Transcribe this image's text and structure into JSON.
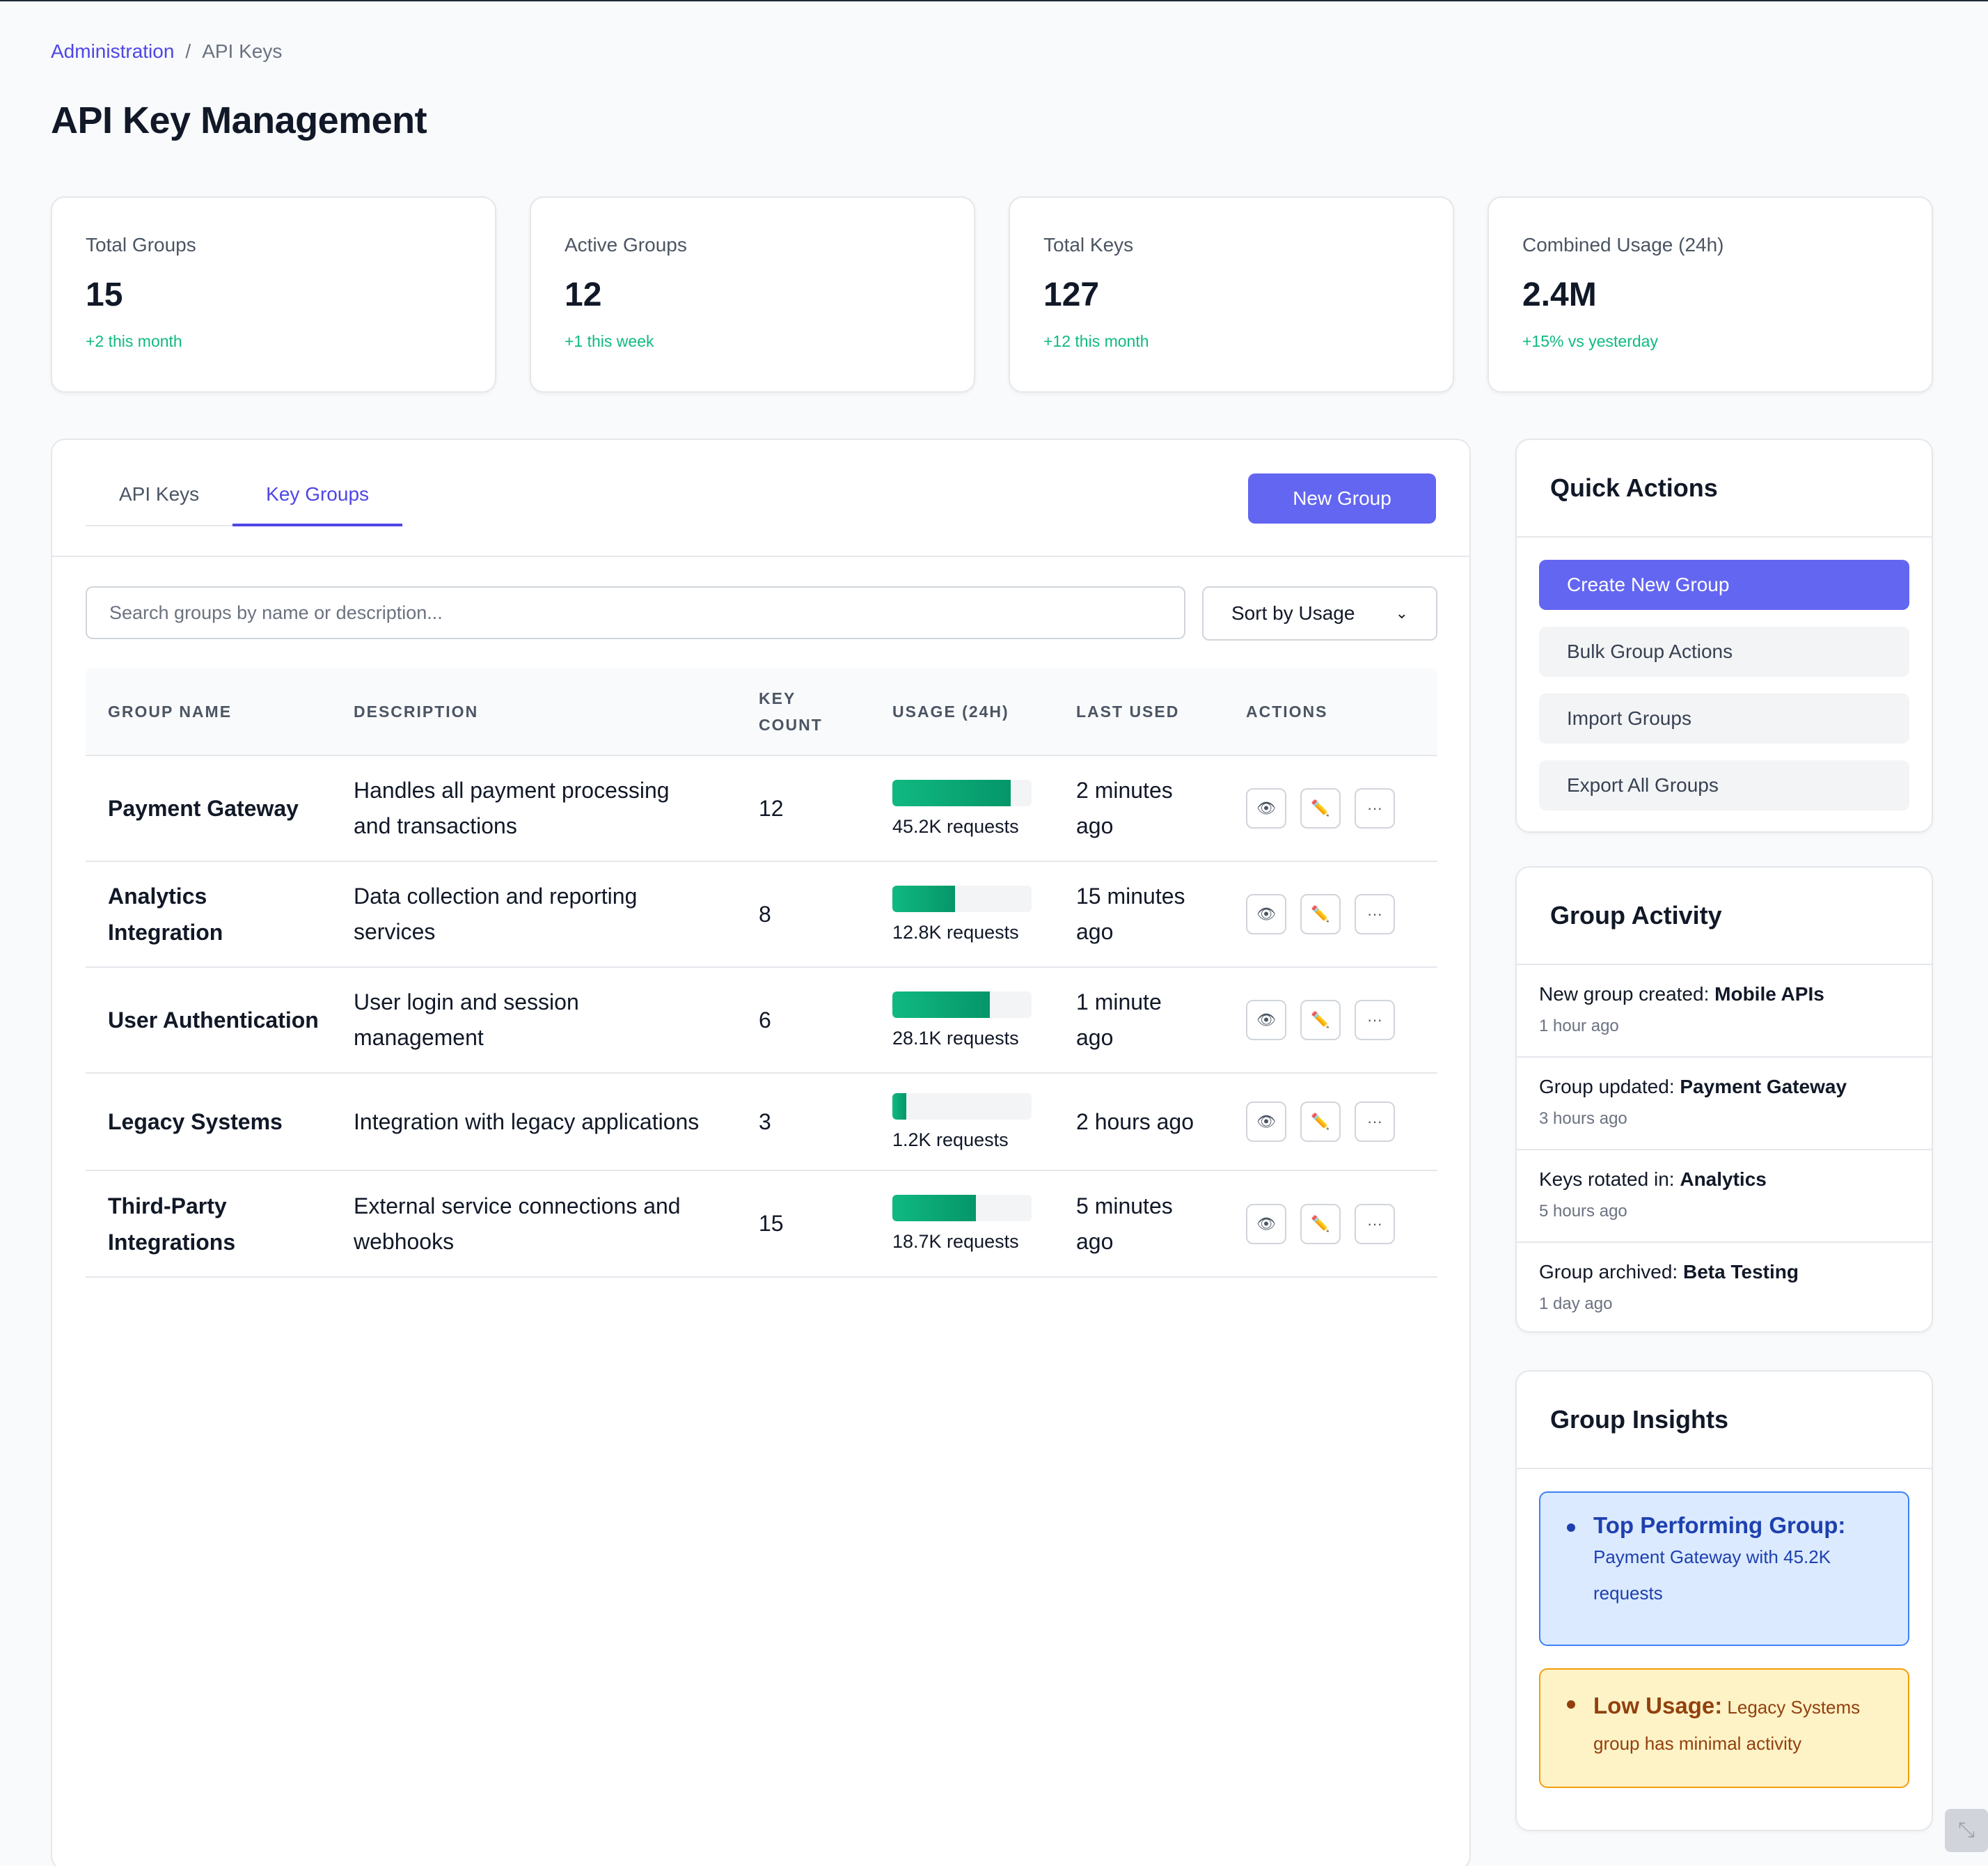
{
  "breadcrumb": {
    "parent": "Administration",
    "separator": "/",
    "current": "API Keys"
  },
  "page_title": "API Key Management",
  "stats": [
    {
      "label": "Total Groups",
      "value": "15",
      "change": "+2 this month"
    },
    {
      "label": "Active Groups",
      "value": "12",
      "change": "+1 this week"
    },
    {
      "label": "Total Keys",
      "value": "127",
      "change": "+12 this month"
    },
    {
      "label": "Combined Usage (24h)",
      "value": "2.4M",
      "change": "+15% vs yesterday"
    }
  ],
  "tabs": [
    {
      "label": "API Keys",
      "active": false
    },
    {
      "label": "Key Groups",
      "active": true
    }
  ],
  "new_group_label": "New Group",
  "search": {
    "placeholder": "Search groups by name or description...",
    "value": ""
  },
  "sort": {
    "selected": "Sort by Usage"
  },
  "table": {
    "headers": {
      "name": "Group Name",
      "description": "Description",
      "key_count_1": "Key",
      "key_count_2": "Count",
      "usage": "Usage (24h)",
      "last_used": "Last Used",
      "actions": "Actions"
    },
    "rows": [
      {
        "name_1": "Payment Gateway",
        "name_2": "",
        "desc_1": "Handles all payment processing",
        "desc_2": "and transactions",
        "key_count": "12",
        "usage_pct": 85,
        "usage_text": "45.2K requests",
        "last_1": "2 minutes",
        "last_2": "ago"
      },
      {
        "name_1": "Analytics",
        "name_2": "Integration",
        "desc_1": "Data collection and reporting",
        "desc_2": "services",
        "key_count": "8",
        "usage_pct": 45,
        "usage_text": "12.8K requests",
        "last_1": "15 minutes",
        "last_2": "ago"
      },
      {
        "name_1": "User Authentication",
        "name_2": "",
        "desc_1": "User login and session",
        "desc_2": "management",
        "key_count": "6",
        "usage_pct": 70,
        "usage_text": "28.1K requests",
        "last_1": "1 minute",
        "last_2": "ago"
      },
      {
        "name_1": "Legacy Systems",
        "name_2": "",
        "desc_1": "Integration with legacy applications",
        "desc_2": "",
        "key_count": "3",
        "usage_pct": 10,
        "usage_text": "1.2K requests",
        "last_1": "2 hours ago",
        "last_2": ""
      },
      {
        "name_1": "Third-Party",
        "name_2": "Integrations",
        "desc_1": "External service connections and",
        "desc_2": "webhooks",
        "key_count": "15",
        "usage_pct": 60,
        "usage_text": "18.7K requests",
        "last_1": "5 minutes",
        "last_2": "ago"
      }
    ],
    "action_icons": {
      "view": "👁",
      "edit": "✏️",
      "more": "···"
    }
  },
  "quick_actions": {
    "title": "Quick Actions",
    "items": [
      "Create New Group",
      "Bulk Group Actions",
      "Import Groups",
      "Export All Groups"
    ]
  },
  "group_activity": {
    "title": "Group Activity",
    "items": [
      {
        "prefix": "New group created: ",
        "subject": "Mobile APIs",
        "time": "1 hour ago"
      },
      {
        "prefix": "Group updated: ",
        "subject": "Payment Gateway",
        "time": "3 hours ago"
      },
      {
        "prefix": "Keys rotated in: ",
        "subject": "Analytics",
        "time": "5 hours ago"
      },
      {
        "prefix": "Group archived: ",
        "subject": "Beta Testing",
        "time": "1 day ago"
      }
    ]
  },
  "group_insights": {
    "title": "Group Insights",
    "top": {
      "head": "Top Performing Group:",
      "body_1": "Payment Gateway with 45.2K",
      "body_2": "requests"
    },
    "low": {
      "head": "Low Usage:",
      "body_inline": " Legacy Systems",
      "body_2": "group has minimal activity"
    }
  },
  "colors": {
    "accent": "#6366f1",
    "positive": "#10b981",
    "info_bg": "#dbeafe",
    "warn_bg": "#fef3c7"
  }
}
